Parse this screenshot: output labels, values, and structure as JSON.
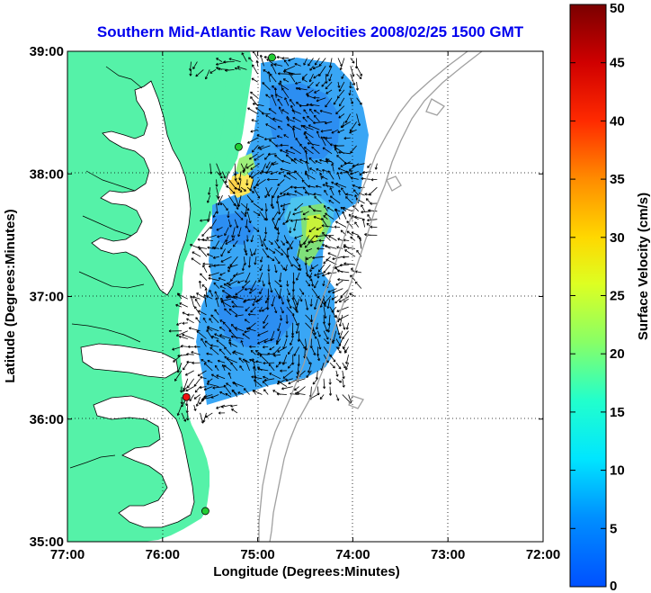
{
  "chart_data": {
    "type": "heatmap",
    "title": "Southern Mid-Atlantic Raw Velocities 2008/02/25 1500 GMT",
    "xlabel": "Longitude (Degrees:Minutes)",
    "ylabel": "Latitude (Degrees:Minutes)",
    "colorbar_label": "Surface Velocity (cm/s)",
    "xlim": [
      -77,
      -72
    ],
    "ylim": [
      35,
      39
    ],
    "clim": [
      0,
      50
    ],
    "grid": true,
    "x_ticks": [
      {
        "value": -77,
        "label": "77:00"
      },
      {
        "value": -76,
        "label": "76:00"
      },
      {
        "value": -75,
        "label": "75:00"
      },
      {
        "value": -74,
        "label": "74:00"
      },
      {
        "value": -73,
        "label": "73:00"
      },
      {
        "value": -72,
        "label": "72:00"
      }
    ],
    "y_ticks": [
      {
        "value": 35,
        "label": "35:00"
      },
      {
        "value": 36,
        "label": "36:00"
      },
      {
        "value": 37,
        "label": "37:00"
      },
      {
        "value": 38,
        "label": "38:00"
      },
      {
        "value": 39,
        "label": "39:00"
      }
    ],
    "colorbar_ticks": [
      0,
      5,
      10,
      15,
      20,
      25,
      30,
      35,
      40,
      45,
      50
    ],
    "colormap": "jet",
    "stations": [
      {
        "lon": -74.85,
        "lat": 38.95,
        "color": "#22cc33"
      },
      {
        "lon": -75.2,
        "lat": 38.22,
        "color": "#22cc33"
      },
      {
        "lon": -75.75,
        "lat": 36.18,
        "color": "#ee1111"
      },
      {
        "lon": -75.55,
        "lat": 35.25,
        "color": "#22cc33"
      }
    ],
    "velocity_field": {
      "lon_range": [
        -75.8,
        -73.7
      ],
      "lat_range": [
        36.05,
        38.95
      ],
      "dominant_speed_cm_s": [
        5,
        12
      ],
      "max_speed_cm_s": 25
    },
    "land_color": "#55f2a8",
    "water_color": "#ffffff",
    "bathymetry_color": "#a0a0a0"
  }
}
